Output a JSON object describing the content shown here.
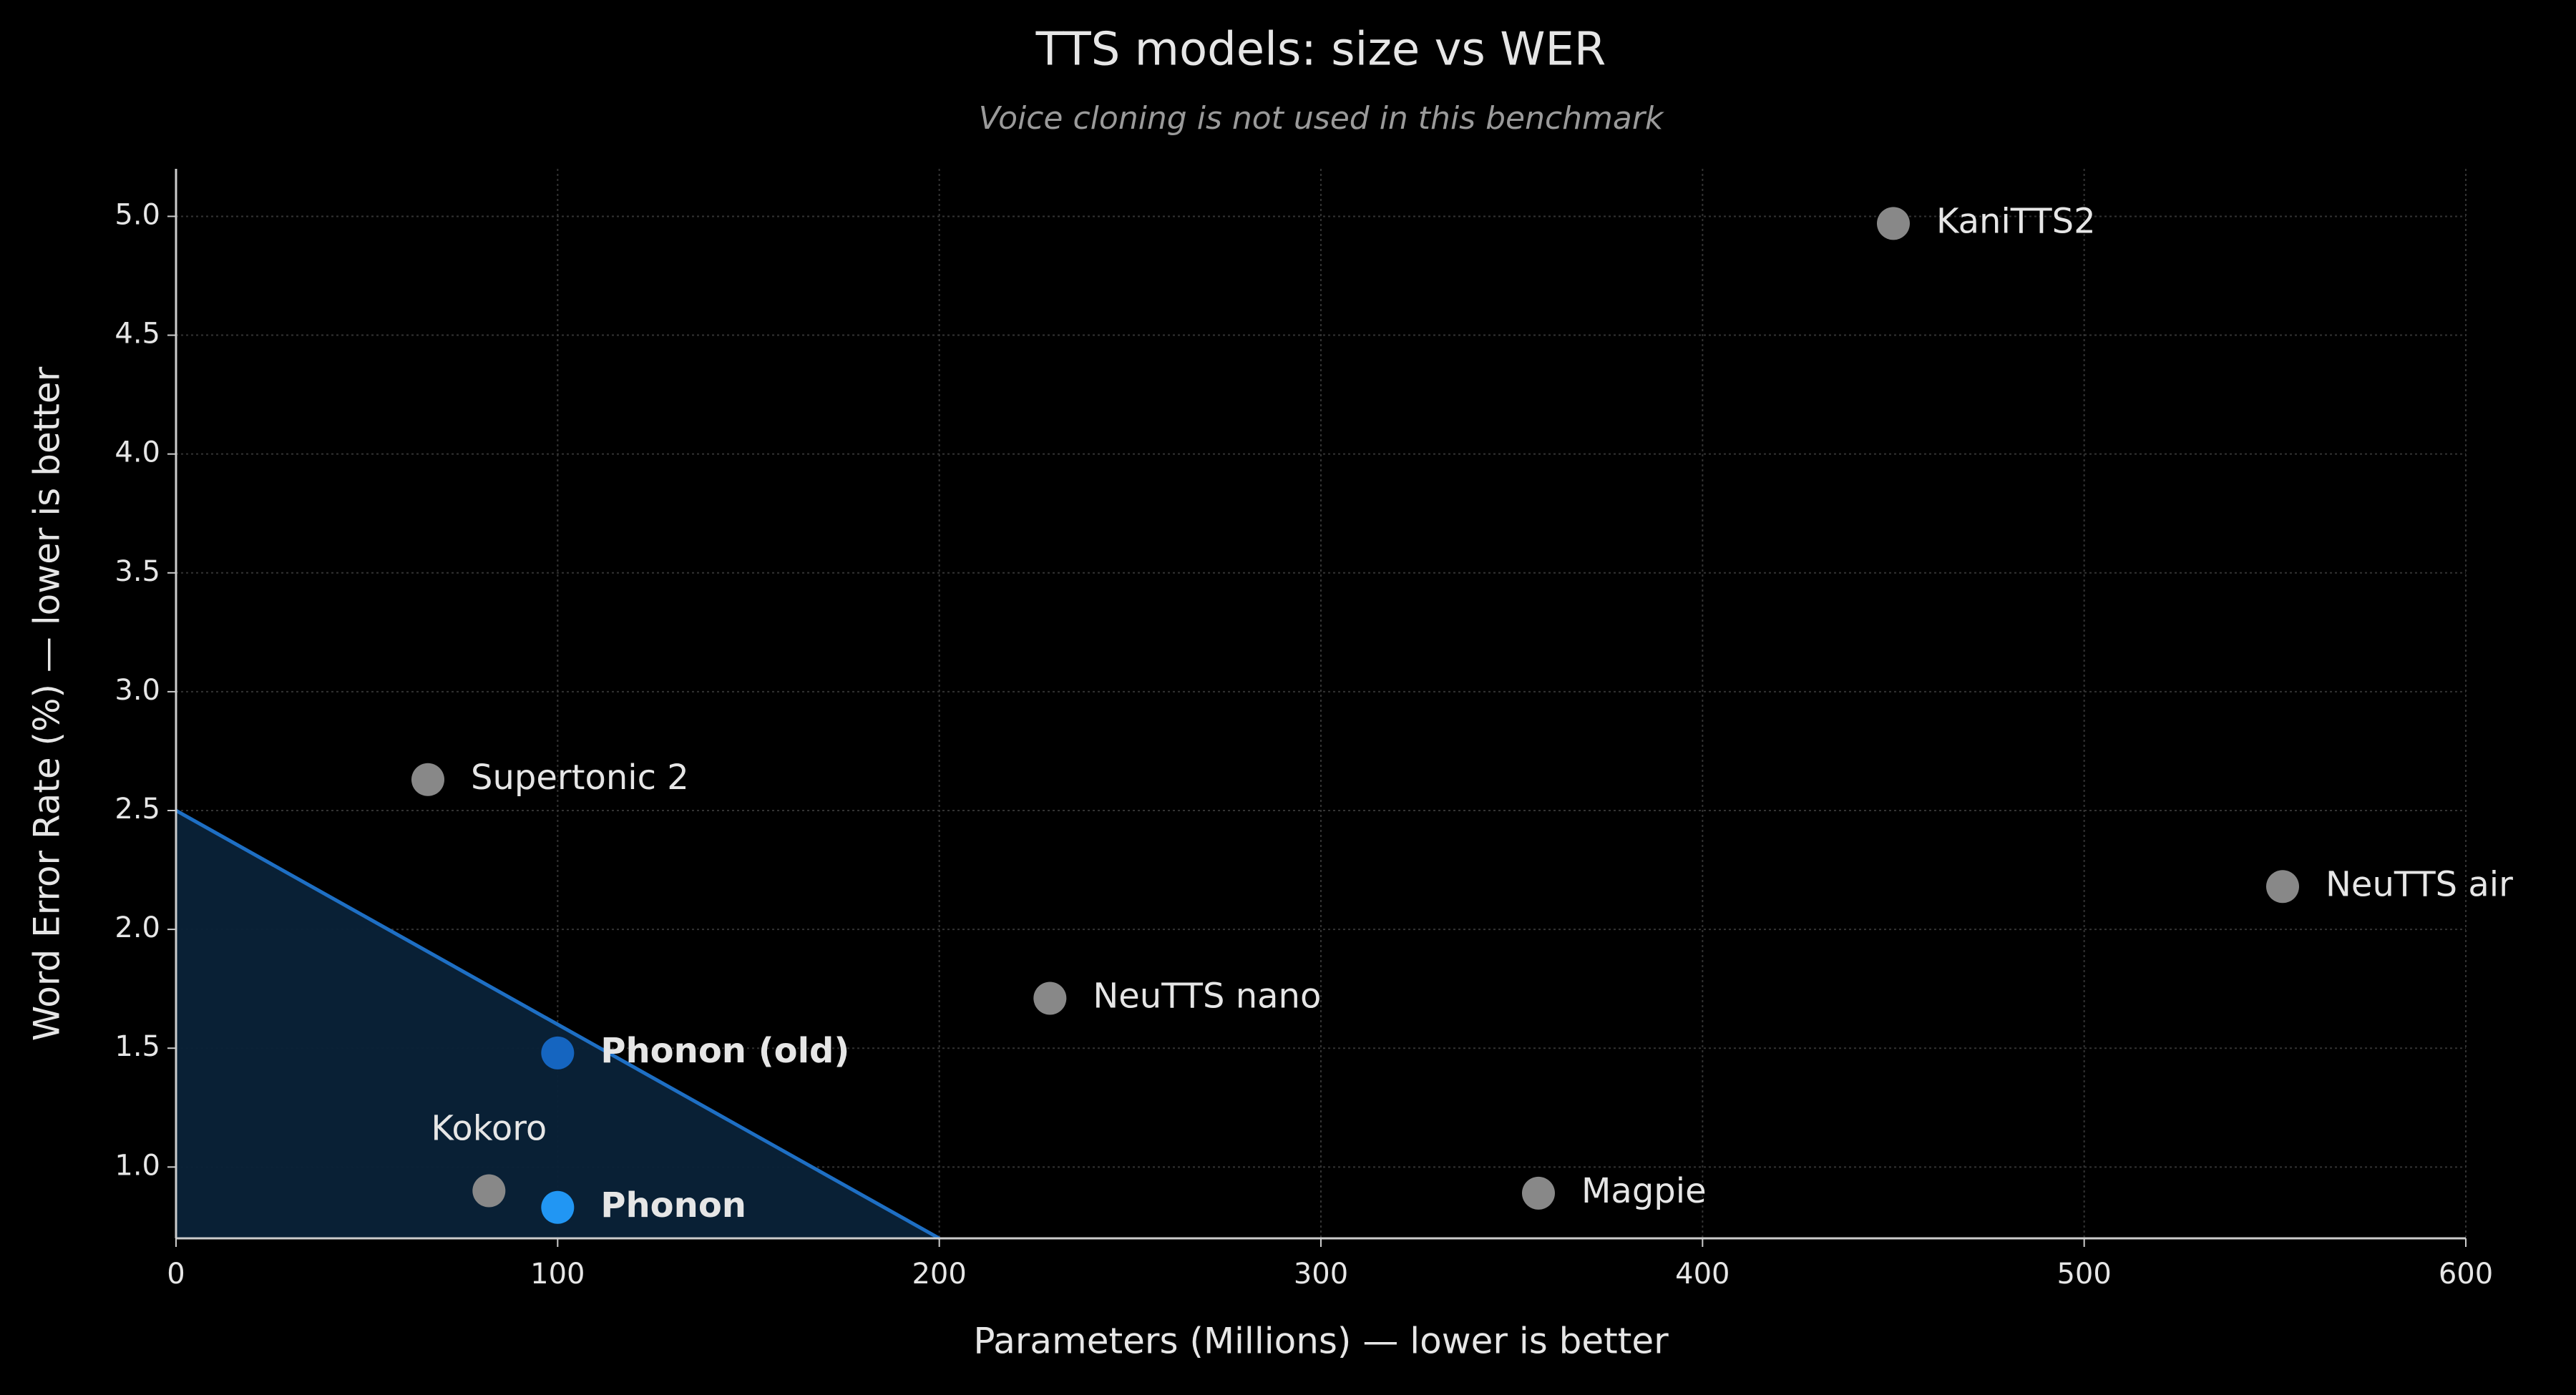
{
  "chart_data": {
    "type": "scatter",
    "title": "TTS models: size vs WER",
    "subtitle": "Voice cloning is not used in this benchmark",
    "xlabel": "Parameters (Millions) — lower is better",
    "ylabel": "Word Error Rate (%) — lower is better",
    "xlim": [
      0,
      600
    ],
    "ylim": [
      0.7,
      5.2
    ],
    "xticks": [
      0,
      100,
      200,
      300,
      400,
      500,
      600
    ],
    "yticks": [
      {
        "value": 1,
        "label": "1.0"
      },
      1.5,
      {
        "value": 2,
        "label": "2.0"
      },
      2.5,
      {
        "value": 3,
        "label": "3.0"
      },
      3.5,
      {
        "value": 4,
        "label": "4.0"
      },
      4.5,
      {
        "value": 5,
        "label": "5.0"
      }
    ],
    "grid": true,
    "frontier": {
      "x": [
        0,
        200
      ],
      "y": [
        2.5,
        0.7
      ],
      "color": "#1e6fc4",
      "fill": "#0a2238"
    },
    "points": [
      {
        "label": "KaniTTS2",
        "x": 450,
        "y": 4.97,
        "color": "#888888"
      },
      {
        "label": "Supertonic 2",
        "x": 66,
        "y": 2.63,
        "color": "#888888"
      },
      {
        "label": "NeuTTS air",
        "x": 552,
        "y": 2.18,
        "color": "#888888"
      },
      {
        "label": "NeuTTS nano",
        "x": 229,
        "y": 1.71,
        "color": "#888888"
      },
      {
        "label": "Phonon (old)",
        "x": 100,
        "y": 1.48,
        "color": "#1565c0",
        "bold": true
      },
      {
        "label": "Kokoro",
        "x": 82,
        "y": 0.9,
        "color": "#888888",
        "label_side": "top"
      },
      {
        "label": "Phonon",
        "x": 100,
        "y": 0.83,
        "color": "#2196f3",
        "bold": true
      },
      {
        "label": "Magpie",
        "x": 357,
        "y": 0.89,
        "color": "#888888"
      }
    ]
  }
}
